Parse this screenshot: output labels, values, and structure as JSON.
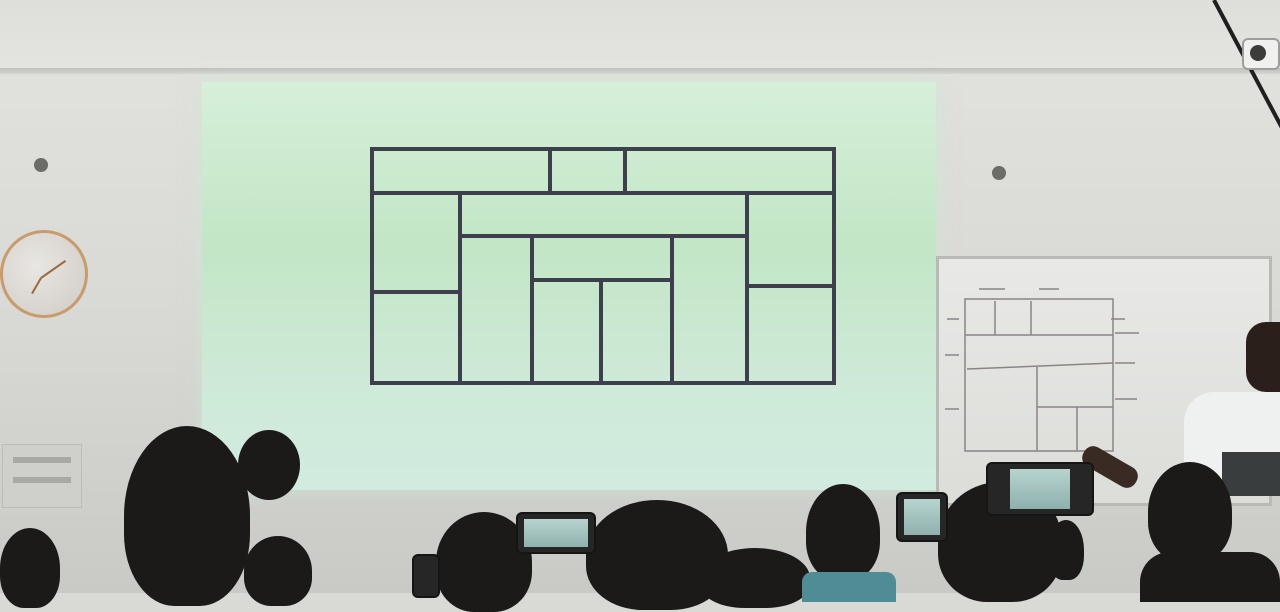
{
  "colors": {
    "wall": "#d8d8d4",
    "screen": "#c2e6c6",
    "grid_lines": "#3e3f4c",
    "whiteboard": "#e8e9e6",
    "audience": "#1c1a19"
  },
  "icons": [
    "wall-clock-icon",
    "security-camera-icon",
    "smoke-detector-icon"
  ]
}
